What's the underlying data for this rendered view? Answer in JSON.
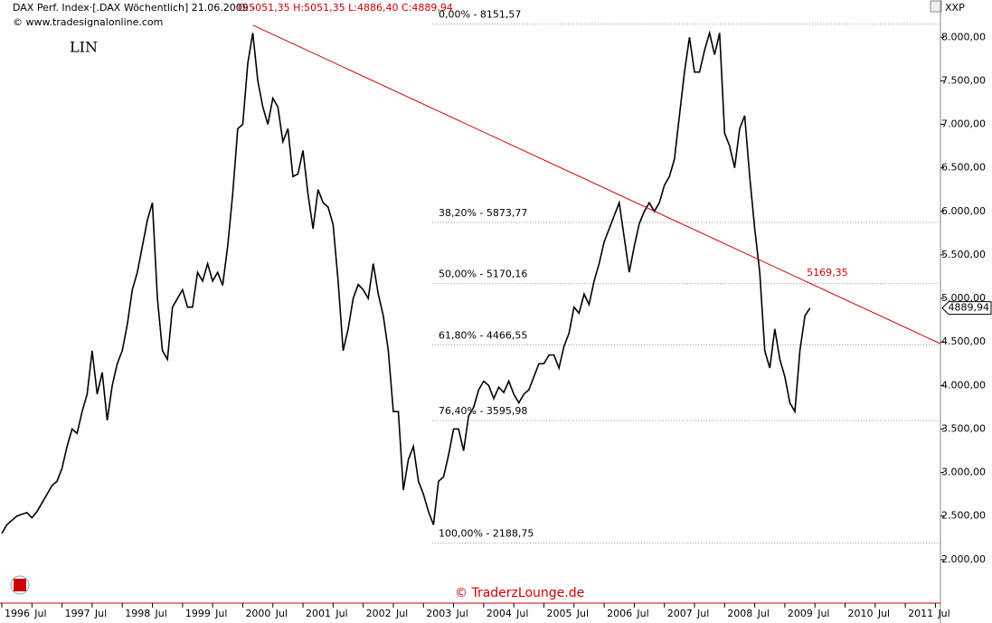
{
  "chart_data": {
    "type": "line",
    "header": "DAX Perf. Index·[.DAX  Wöchentlich] 21.06.2009 -",
    "ohlc": "O:5051,35 H:5051,35 L:4886,40 C:4889,94",
    "source": "© www.tradesignalonline.com",
    "label": "LIN",
    "corner": "XXP",
    "watermark": "© TraderzLounge.de",
    "x": [
      "1996-01",
      "1996-02",
      "1996-03",
      "1996-04",
      "1996-05",
      "1996-06",
      "1996-07",
      "1996-08",
      "1996-09",
      "1996-10",
      "1996-11",
      "1996-12",
      "1997-01",
      "1997-02",
      "1997-03",
      "1997-04",
      "1997-05",
      "1997-06",
      "1997-07",
      "1997-08",
      "1997-09",
      "1997-10",
      "1997-11",
      "1997-12",
      "1998-01",
      "1998-02",
      "1998-03",
      "1998-04",
      "1998-05",
      "1998-06",
      "1998-07",
      "1998-08",
      "1998-09",
      "1998-10",
      "1998-11",
      "1998-12",
      "1999-01",
      "1999-02",
      "1999-03",
      "1999-04",
      "1999-05",
      "1999-06",
      "1999-07",
      "1999-08",
      "1999-09",
      "1999-10",
      "1999-11",
      "1999-12",
      "2000-01",
      "2000-02",
      "2000-03",
      "2000-04",
      "2000-05",
      "2000-06",
      "2000-07",
      "2000-08",
      "2000-09",
      "2000-10",
      "2000-11",
      "2000-12",
      "2001-01",
      "2001-02",
      "2001-03",
      "2001-04",
      "2001-05",
      "2001-06",
      "2001-07",
      "2001-08",
      "2001-09",
      "2001-10",
      "2001-11",
      "2001-12",
      "2002-01",
      "2002-02",
      "2002-03",
      "2002-04",
      "2002-05",
      "2002-06",
      "2002-07",
      "2002-08",
      "2002-09",
      "2002-10",
      "2002-11",
      "2002-12",
      "2003-01",
      "2003-02",
      "2003-03",
      "2003-04",
      "2003-05",
      "2003-06",
      "2003-07",
      "2003-08",
      "2003-09",
      "2003-10",
      "2003-11",
      "2003-12",
      "2004-01",
      "2004-02",
      "2004-03",
      "2004-04",
      "2004-05",
      "2004-06",
      "2004-07",
      "2004-08",
      "2004-09",
      "2004-10",
      "2004-11",
      "2004-12",
      "2005-01",
      "2005-02",
      "2005-03",
      "2005-04",
      "2005-05",
      "2005-06",
      "2005-07",
      "2005-08",
      "2005-09",
      "2005-10",
      "2005-11",
      "2005-12",
      "2006-01",
      "2006-02",
      "2006-03",
      "2006-04",
      "2006-05",
      "2006-06",
      "2006-07",
      "2006-08",
      "2006-09",
      "2006-10",
      "2006-11",
      "2006-12",
      "2007-01",
      "2007-02",
      "2007-03",
      "2007-04",
      "2007-05",
      "2007-06",
      "2007-07",
      "2007-08",
      "2007-09",
      "2007-10",
      "2007-11",
      "2007-12",
      "2008-01",
      "2008-02",
      "2008-03",
      "2008-04",
      "2008-05",
      "2008-06",
      "2008-07",
      "2008-08",
      "2008-09",
      "2008-10",
      "2008-11",
      "2008-12",
      "2009-01",
      "2009-02",
      "2009-03",
      "2009-04",
      "2009-05",
      "2009-06"
    ],
    "series": [
      {
        "name": "DAX",
        "color": "#000000",
        "values": [
          2300,
          2400,
          2450,
          2500,
          2520,
          2540,
          2480,
          2550,
          2650,
          2750,
          2850,
          2900,
          3050,
          3300,
          3500,
          3450,
          3700,
          3900,
          4400,
          3900,
          4150,
          3600,
          4000,
          4250,
          4400,
          4700,
          5100,
          5300,
          5600,
          5900,
          6100,
          5000,
          4400,
          4300,
          4900,
          5000,
          5100,
          4900,
          4900,
          5300,
          5200,
          5400,
          5200,
          5300,
          5150,
          5600,
          6200,
          6950,
          7000,
          7700,
          8050,
          7500,
          7200,
          7000,
          7300,
          7200,
          6800,
          6950,
          6400,
          6430,
          6700,
          6200,
          5800,
          6250,
          6100,
          6050,
          5850,
          5200,
          4400,
          4650,
          5000,
          5160,
          5100,
          5000,
          5400,
          5050,
          4800,
          4400,
          3700,
          3700,
          2800,
          3150,
          3300,
          2900,
          2750,
          2550,
          2400,
          2900,
          2950,
          3200,
          3500,
          3500,
          3250,
          3650,
          3750,
          3950,
          4050,
          4000,
          3850,
          3980,
          3920,
          4050,
          3900,
          3800,
          3900,
          3950,
          4100,
          4250,
          4250,
          4350,
          4350,
          4200,
          4450,
          4600,
          4900,
          4830,
          5050,
          4930,
          5200,
          5400,
          5650,
          5800,
          5950,
          6100,
          5700,
          5300,
          5600,
          5860,
          6000,
          6100,
          6000,
          6100,
          6300,
          6400,
          6600,
          7100,
          7600,
          8000,
          7600,
          7600,
          7850,
          8050,
          7800,
          8050,
          6900,
          6750,
          6500,
          6950,
          7100,
          6400,
          5800,
          5300,
          4400,
          4200,
          4650,
          4300,
          4100,
          3800,
          3700,
          4400,
          4800,
          4890
        ]
      }
    ],
    "trendline": {
      "color": "#cc0000",
      "x": [
        "2000-03",
        "2011-08"
      ],
      "values": [
        8140,
        4480
      ]
    },
    "annotation": {
      "label": "5169,35",
      "value": 5169.35,
      "x": "2009-05"
    },
    "fib_levels": [
      {
        "label": "0,00% - 8151,57",
        "value": 8151.57
      },
      {
        "label": "38,20% - 5873,77",
        "value": 5873.77
      },
      {
        "label": "50,00% - 5170,16",
        "value": 5170.16
      },
      {
        "label": "61,80% - 4466,55",
        "value": 4466.55
      },
      {
        "label": "76,40% - 3595,98",
        "value": 3595.98
      },
      {
        "label": "100,00% - 2188,75",
        "value": 2188.75
      }
    ],
    "last_price": {
      "value": 4889.94,
      "label": "4889,94"
    },
    "ylim": [
      1500,
      8200
    ],
    "yticks": [
      {
        "value": 2000,
        "label": "2.000,00"
      },
      {
        "value": 2500,
        "label": "2.500,00"
      },
      {
        "value": 3000,
        "label": "3.000,00"
      },
      {
        "value": 3500,
        "label": "3.500,00"
      },
      {
        "value": 4000,
        "label": "4.000,00"
      },
      {
        "value": 4500,
        "label": "4.500,00"
      },
      {
        "value": 5000,
        "label": "5.000,00"
      },
      {
        "value": 5500,
        "label": "5.500,00"
      },
      {
        "value": 6000,
        "label": "6.000,00"
      },
      {
        "value": 6500,
        "label": "6.500,00"
      },
      {
        "value": 7000,
        "label": "7.000,00"
      },
      {
        "value": 7500,
        "label": "7.500,00"
      },
      {
        "value": 8000,
        "label": "8.000,00"
      }
    ],
    "xlim": [
      "1996-01",
      "2011-08"
    ],
    "xticks": [
      {
        "value": "1996-01",
        "label": "1996"
      },
      {
        "value": "1996-07",
        "label": "Jul"
      },
      {
        "value": "1997-01",
        "label": "1997"
      },
      {
        "value": "1997-07",
        "label": "Jul"
      },
      {
        "value": "1998-01",
        "label": "1998"
      },
      {
        "value": "1998-07",
        "label": "Jul"
      },
      {
        "value": "1999-01",
        "label": "1999"
      },
      {
        "value": "1999-07",
        "label": "Jul"
      },
      {
        "value": "2000-01",
        "label": "2000"
      },
      {
        "value": "2000-07",
        "label": "Jul"
      },
      {
        "value": "2001-01",
        "label": "2001"
      },
      {
        "value": "2001-07",
        "label": "Jul"
      },
      {
        "value": "2002-01",
        "label": "2002"
      },
      {
        "value": "2002-07",
        "label": "Jul"
      },
      {
        "value": "2003-01",
        "label": "2003"
      },
      {
        "value": "2003-07",
        "label": "Jul"
      },
      {
        "value": "2004-01",
        "label": "2004"
      },
      {
        "value": "2004-07",
        "label": "Jul"
      },
      {
        "value": "2005-01",
        "label": "2005"
      },
      {
        "value": "2005-07",
        "label": "Jul"
      },
      {
        "value": "2006-01",
        "label": "2006"
      },
      {
        "value": "2006-07",
        "label": "Jul"
      },
      {
        "value": "2007-01",
        "label": "2007"
      },
      {
        "value": "2007-07",
        "label": "Jul"
      },
      {
        "value": "2008-01",
        "label": "2008"
      },
      {
        "value": "2008-07",
        "label": "Jul"
      },
      {
        "value": "2009-01",
        "label": "2009"
      },
      {
        "value": "2009-07",
        "label": "Jul"
      },
      {
        "value": "2010-01",
        "label": "2010"
      },
      {
        "value": "2010-07",
        "label": "Jul"
      },
      {
        "value": "2011-01",
        "label": "2011"
      },
      {
        "value": "2011-07",
        "label": "Jul"
      }
    ]
  }
}
